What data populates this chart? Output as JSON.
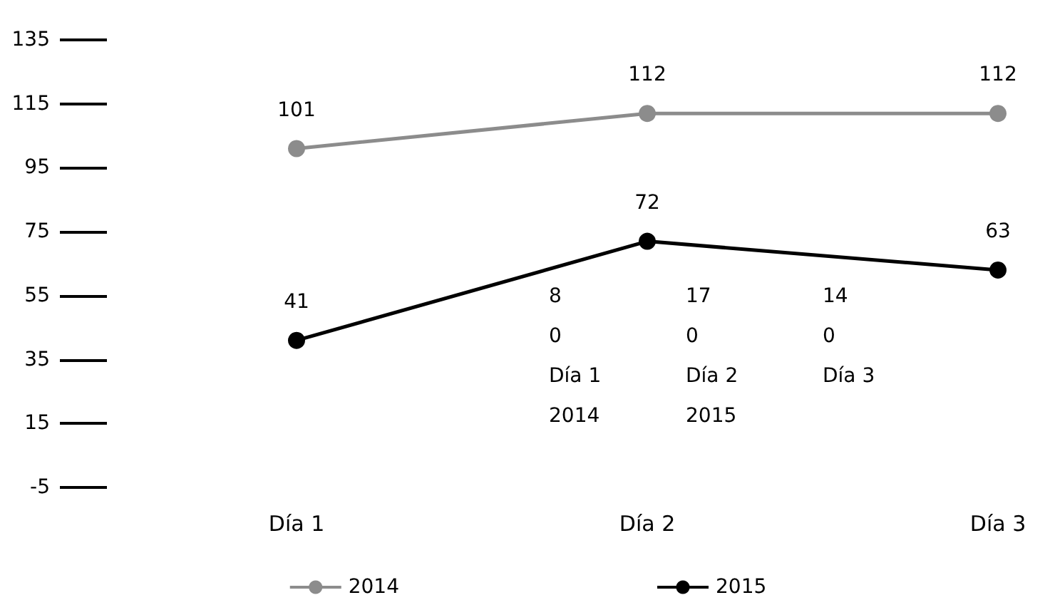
{
  "chart_data": {
    "type": "line",
    "categories": [
      "Día 1",
      "Día 2",
      "Día 3"
    ],
    "series": [
      {
        "name": "2014",
        "color": "#8c8c8c",
        "values": [
          101,
          112,
          112
        ]
      },
      {
        "name": "2015",
        "color": "#000000",
        "values": [
          41,
          72,
          63
        ]
      }
    ],
    "ylim": [
      -5,
      135
    ],
    "yticks": [
      -5,
      15,
      35,
      55,
      75,
      95,
      115,
      135
    ],
    "data_labels": true,
    "marker": "circle",
    "line_style": "solid",
    "legend": "bottom",
    "grid": false,
    "annotations": [
      "8\n0\nDía 1\n2014",
      "17\n0\nDía 2\n2015",
      "14\n0\nDía 3"
    ]
  }
}
